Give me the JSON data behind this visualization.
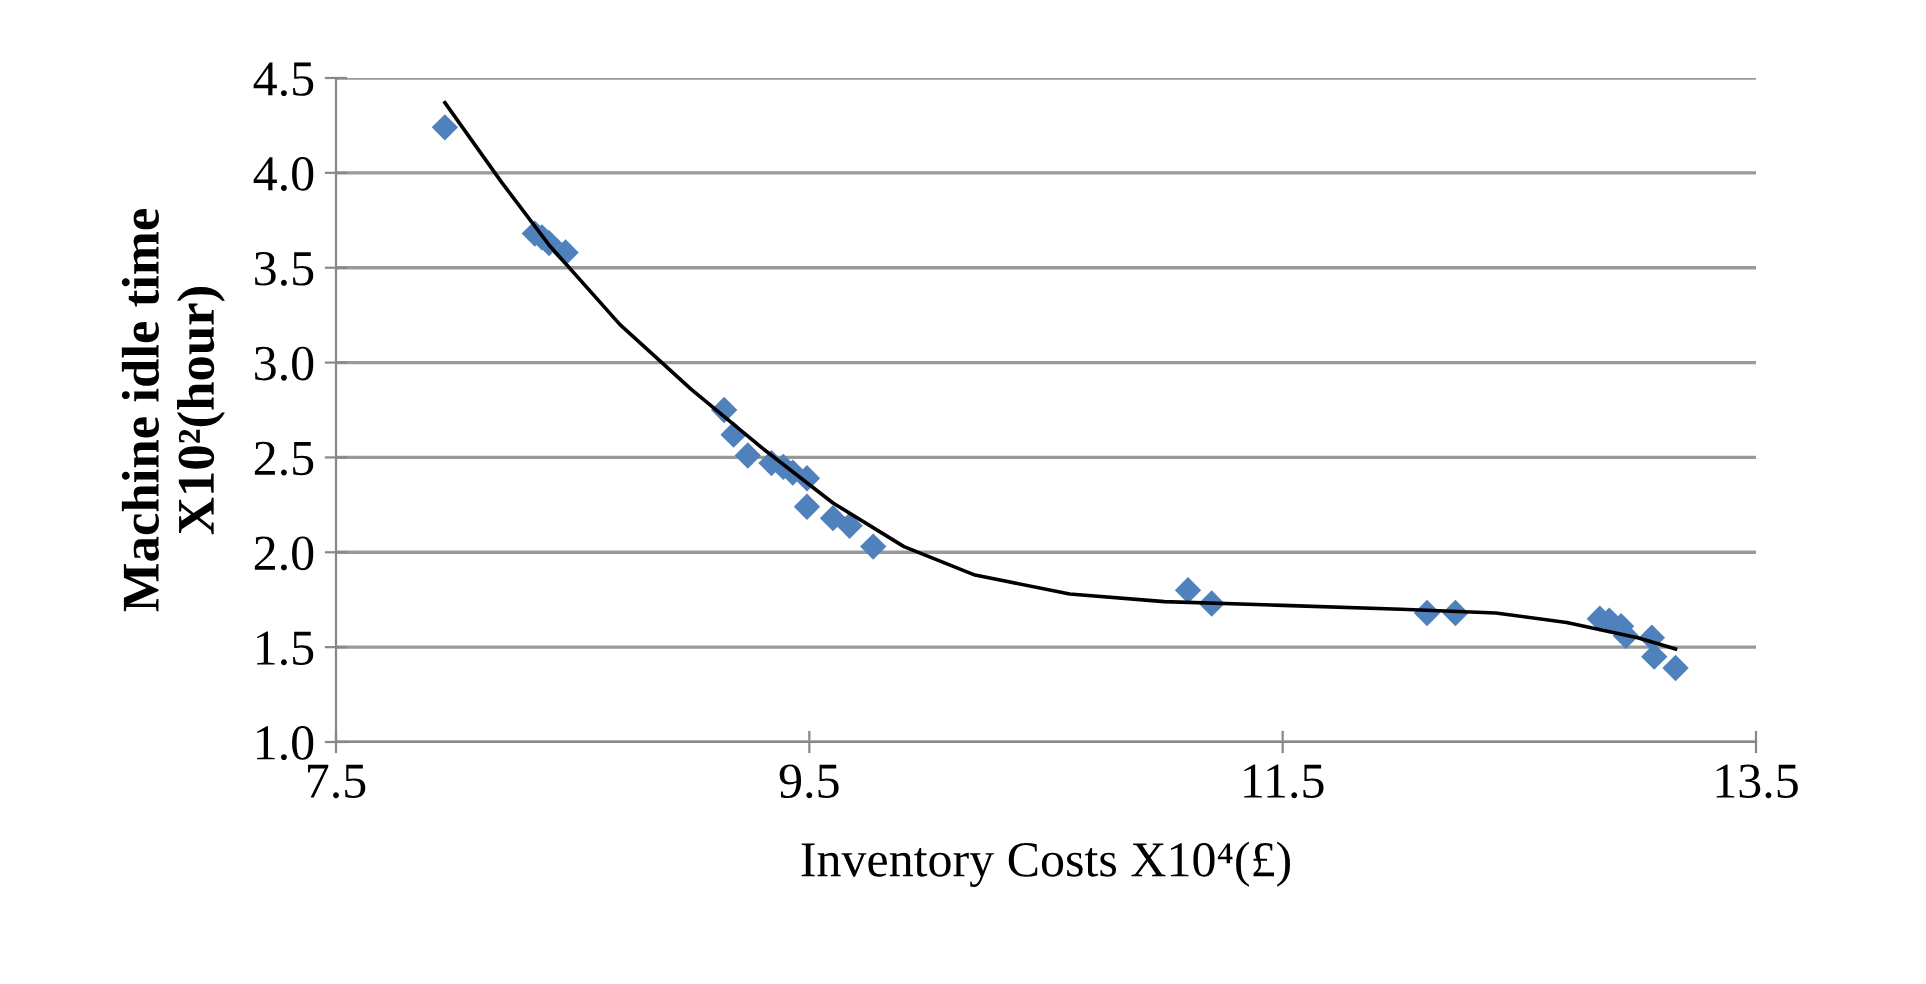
{
  "chart_data": {
    "type": "scatter",
    "xlabel": "Inventory Costs X10⁴(£)",
    "ylabel": "Machine idle time\nX10²(hour)",
    "xlim": [
      7.5,
      13.5
    ],
    "xticks": [
      {
        "value": 7.5,
        "label": "7.5"
      },
      {
        "value": 9.5,
        "label": "9.5"
      },
      {
        "value": 11.5,
        "label": "11.5"
      },
      {
        "value": 13.5,
        "label": "13.5"
      }
    ],
    "ylim": [
      1.0,
      4.5
    ],
    "yticks": [
      {
        "value": 1.0,
        "label": "1.0"
      },
      {
        "value": 1.5,
        "label": "1.5"
      },
      {
        "value": 2.0,
        "label": "2.0"
      },
      {
        "value": 2.5,
        "label": "2.5"
      },
      {
        "value": 3.0,
        "label": "3.0"
      },
      {
        "value": 3.5,
        "label": "3.5"
      },
      {
        "value": 4.0,
        "label": "4.0"
      },
      {
        "value": 4.5,
        "label": "4.5"
      }
    ],
    "grid": "y",
    "series": [
      {
        "marker": "diamond",
        "color": "#4f81bd",
        "x": [
          7.96,
          8.34,
          8.37,
          8.4,
          8.47,
          9.14,
          9.18,
          9.24,
          9.34,
          9.39,
          9.43,
          9.49,
          9.49,
          9.6,
          9.67,
          9.77,
          11.1,
          11.2,
          12.11,
          12.23,
          12.84,
          12.88,
          12.93,
          12.95,
          13.06,
          13.07,
          13.16
        ],
        "values": [
          4.24,
          3.68,
          3.66,
          3.63,
          3.58,
          2.75,
          2.62,
          2.51,
          2.47,
          2.45,
          2.42,
          2.39,
          2.24,
          2.18,
          2.14,
          2.03,
          1.8,
          1.73,
          1.68,
          1.68,
          1.65,
          1.64,
          1.61,
          1.56,
          1.55,
          1.45,
          1.39
        ]
      },
      {
        "type": "line",
        "marker": "none",
        "color": "#000000",
        "x": [
          7.96,
          8.2,
          8.4,
          8.7,
          9.0,
          9.3,
          9.6,
          9.9,
          10.2,
          10.6,
          11.0,
          11.5,
          12.0,
          12.4,
          12.7,
          13.0,
          13.16
        ],
        "values": [
          4.37,
          3.95,
          3.62,
          3.2,
          2.86,
          2.55,
          2.26,
          2.03,
          1.88,
          1.78,
          1.74,
          1.72,
          1.7,
          1.68,
          1.63,
          1.55,
          1.49
        ]
      }
    ]
  }
}
